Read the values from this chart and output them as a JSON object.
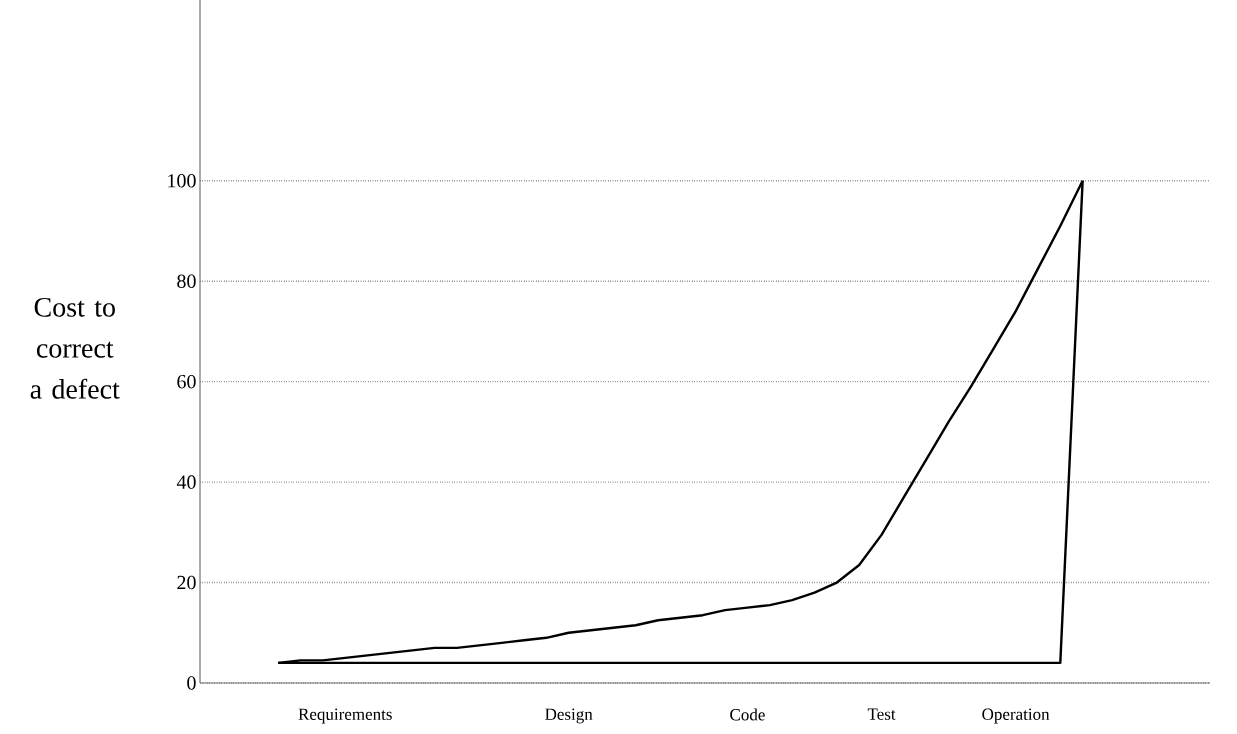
{
  "chart_data": {
    "type": "line",
    "ylabel": "Cost to correct a defect",
    "categories": [
      null,
      null,
      null,
      "Requirements",
      null,
      null,
      null,
      null,
      null,
      null,
      null,
      null,
      null,
      "Design",
      null,
      null,
      null,
      null,
      null,
      null,
      null,
      "Code",
      null,
      null,
      null,
      null,
      null,
      "Test",
      null,
      null,
      null,
      null,
      null,
      "Operation",
      null,
      null,
      null
    ],
    "ylim": [
      0,
      136
    ],
    "yticks": [
      0,
      20,
      40,
      60,
      80,
      100
    ],
    "grid": "y",
    "marker": "none",
    "line_style": "solid",
    "series": [
      {
        "color": "#000000",
        "values": [
          4,
          4.5,
          4.5,
          5,
          5.5,
          6,
          6.5,
          7,
          7,
          7.5,
          8,
          8.5,
          9,
          10,
          10.5,
          11,
          11.5,
          12.5,
          13,
          13.5,
          14.5,
          15,
          15.5,
          16.5,
          18,
          20,
          23.5,
          29.5,
          37,
          44.5,
          52,
          59,
          66.5,
          74,
          82.5,
          91,
          100
        ]
      },
      {
        "color": "#000000",
        "values": [
          4,
          4,
          4,
          4,
          4,
          4,
          4,
          4,
          4,
          4,
          4,
          4,
          4,
          4,
          4,
          4,
          4,
          4,
          4,
          4,
          4,
          4,
          4,
          4,
          4,
          4,
          4,
          4,
          4,
          4,
          4,
          4,
          4,
          4,
          4,
          4,
          100
        ]
      }
    ]
  }
}
